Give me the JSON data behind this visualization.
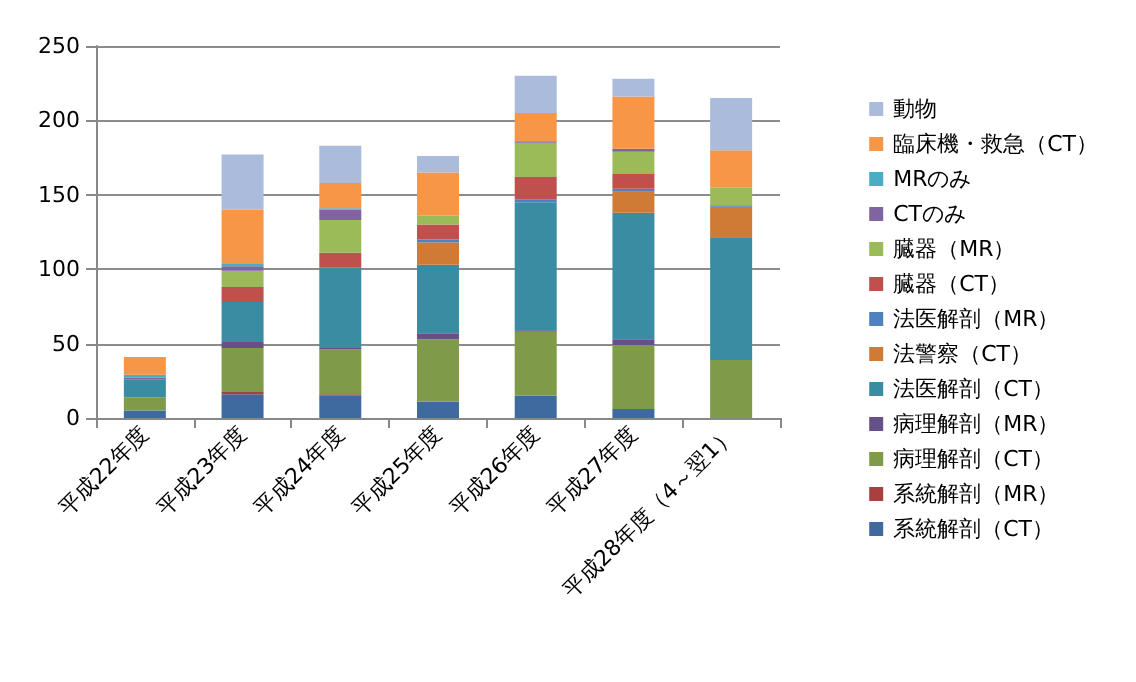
{
  "chart_data": {
    "type": "bar",
    "stacked": true,
    "categories": [
      "平成22年度",
      "平成23年度",
      "平成24年度",
      "平成25年度",
      "平成26年度",
      "平成27年度",
      "平成28年度（4～翌1）"
    ],
    "series": [
      {
        "name": "系統解剖（CT）",
        "color": "#3f6aa0",
        "values": [
          5,
          16,
          15,
          11,
          15,
          6,
          0
        ]
      },
      {
        "name": "系統解剖（MR）",
        "color": "#a8403f",
        "values": [
          0,
          2,
          1,
          0,
          0,
          0,
          0
        ]
      },
      {
        "name": "病理解剖（CT）",
        "color": "#7f9a48",
        "values": [
          9,
          29,
          30,
          42,
          43,
          43,
          39
        ]
      },
      {
        "name": "病理解剖（MR）",
        "color": "#67508a",
        "values": [
          0,
          4,
          1,
          4,
          1,
          4,
          0
        ]
      },
      {
        "name": "法医解剖（CT）",
        "color": "#3a8ca3",
        "values": [
          12,
          27,
          54,
          46,
          86,
          85,
          82
        ]
      },
      {
        "name": "法警察（CT）",
        "color": "#cf7b35",
        "values": [
          0,
          0,
          0,
          15,
          0,
          14,
          21
        ]
      },
      {
        "name": "法医解剖（MR）",
        "color": "#4f81bd",
        "values": [
          0,
          0,
          0,
          2,
          2,
          2,
          1
        ]
      },
      {
        "name": "臓器（CT）",
        "color": "#c0504d",
        "values": [
          0,
          10,
          10,
          10,
          15,
          10,
          0
        ]
      },
      {
        "name": "臓器（MR）",
        "color": "#9bbb59",
        "values": [
          0,
          11,
          22,
          6,
          23,
          15,
          12
        ]
      },
      {
        "name": "CTのみ",
        "color": "#8064a2",
        "values": [
          1,
          3,
          7,
          0,
          1,
          2,
          0
        ]
      },
      {
        "name": "MRのみ",
        "color": "#4bacc6",
        "values": [
          2,
          2,
          1,
          0,
          0,
          0,
          0
        ]
      },
      {
        "name": "臨床機・救急（CT）",
        "color": "#f79646",
        "values": [
          12,
          36,
          17,
          29,
          19,
          35,
          25
        ]
      },
      {
        "name": "動物",
        "color": "#aabbdb",
        "values": [
          0,
          37,
          25,
          11,
          25,
          12,
          35
        ]
      }
    ],
    "ylim": [
      0,
      250
    ],
    "yticks": [
      0,
      50,
      100,
      150,
      200,
      250
    ],
    "grid": "y",
    "legend": "right"
  }
}
